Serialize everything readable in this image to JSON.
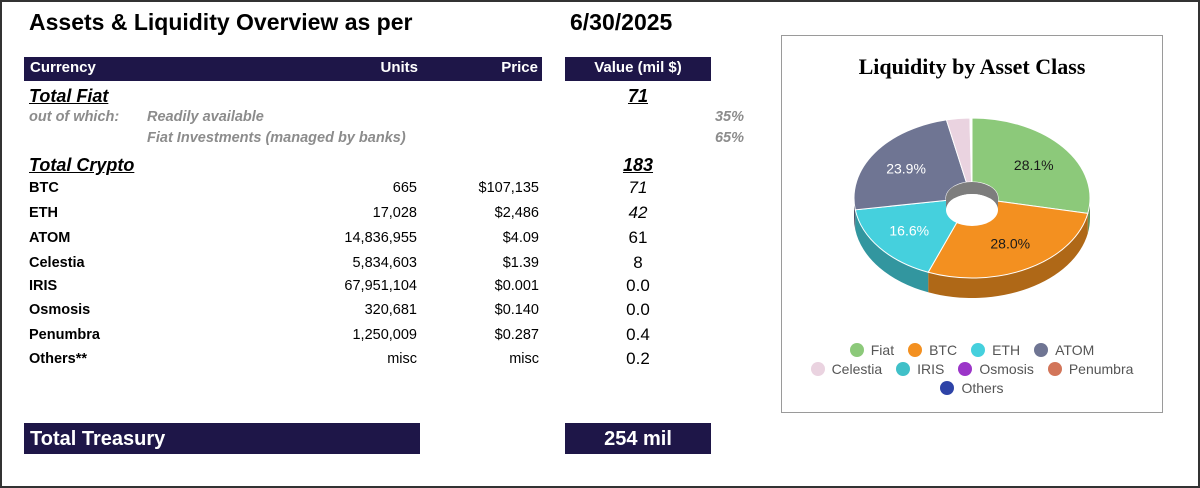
{
  "header": {
    "title": "Assets & Liquidity Overview as per",
    "date": "6/30/2025"
  },
  "table": {
    "columns": {
      "currency": "Currency",
      "units": "Units",
      "price": "Price",
      "value": "Value (mil $)"
    },
    "total_fiat": {
      "label": "Total Fiat",
      "value": "71"
    },
    "fiat_breakdown": {
      "out_of_which": "out of which:",
      "readily_label": "Readily available",
      "readily_pct": "35%",
      "investments_label": "Fiat Investments (managed by banks)",
      "investments_pct": "65%"
    },
    "total_crypto": {
      "label": "Total Crypto",
      "value": "183"
    },
    "rows": [
      {
        "name": "BTC",
        "units": "665",
        "price": "$107,135",
        "value": "71"
      },
      {
        "name": "ETH",
        "units": "17,028",
        "price": "$2,486",
        "value": "42"
      },
      {
        "name": "ATOM",
        "units": "14,836,955",
        "price": "$4.09",
        "value": "61"
      },
      {
        "name": "Celestia",
        "units": "5,834,603",
        "price": "$1.39",
        "value": "8"
      },
      {
        "name": "IRIS",
        "units": "67,951,104",
        "price": "$0.001",
        "value": "0.0"
      },
      {
        "name": "Osmosis",
        "units": "320,681",
        "price": "$0.140",
        "value": "0.0"
      },
      {
        "name": "Penumbra",
        "units": "1,250,009",
        "price": "$0.287",
        "value": "0.4"
      },
      {
        "name": "Others**",
        "units": "misc",
        "price": "misc",
        "value": "0.2"
      }
    ],
    "total_treasury": {
      "label": "Total Treasury",
      "value": "254 mil"
    }
  },
  "chart_data": {
    "type": "pie",
    "style": "3d-donut",
    "title": "Liquidity by Asset Class",
    "legend_position": "bottom",
    "slices": [
      {
        "name": "Fiat",
        "value": 28.1,
        "label": "28.1%",
        "color": "#8cc97a"
      },
      {
        "name": "BTC",
        "value": 28.0,
        "label": "28.0%",
        "color": "#f39020"
      },
      {
        "name": "ETH",
        "value": 16.6,
        "label": "16.6%",
        "color": "#45d0dd"
      },
      {
        "name": "ATOM",
        "value": 23.9,
        "label": "23.9%",
        "color": "#6f7593"
      },
      {
        "name": "Celestia",
        "value": 3.2,
        "label": "",
        "color": "#ead3e0"
      },
      {
        "name": "IRIS",
        "value": 0.05,
        "label": "",
        "color": "#40c0c8"
      },
      {
        "name": "Osmosis",
        "value": 0.05,
        "label": "",
        "color": "#9b35c8"
      },
      {
        "name": "Penumbra",
        "value": 0.1,
        "label": "",
        "color": "#d27559"
      },
      {
        "name": "Others",
        "value": 0.08,
        "label": "",
        "color": "#2e43a7"
      }
    ]
  },
  "colors": {
    "header_bar": "#1e1648",
    "muted_text": "#8c8c8c"
  }
}
